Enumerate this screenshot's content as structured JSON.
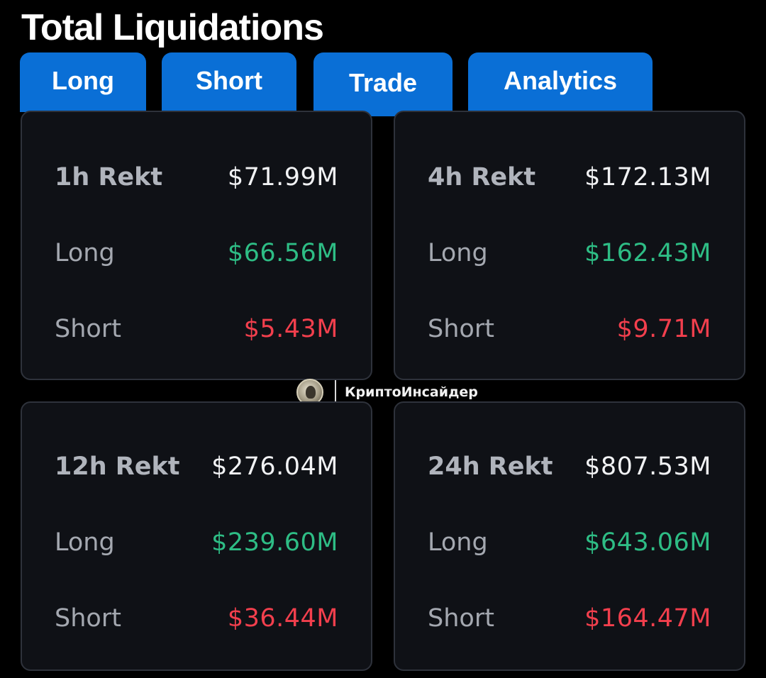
{
  "page": {
    "title": "Total Liquidations"
  },
  "tabs": [
    {
      "label": "Long",
      "active": false
    },
    {
      "label": "Short",
      "active": false
    },
    {
      "label": "Trade",
      "active": true
    },
    {
      "label": "Analytics",
      "active": false
    }
  ],
  "cards": [
    {
      "period_label": "1h Rekt",
      "total": "$71.99M",
      "long_label": "Long",
      "long_value": "$66.56M",
      "short_label": "Short",
      "short_value": "$5.43M"
    },
    {
      "period_label": "4h Rekt",
      "total": "$172.13M",
      "long_label": "Long",
      "long_value": "$162.43M",
      "short_label": "Short",
      "short_value": "$9.71M"
    },
    {
      "period_label": "12h Rekt",
      "total": "$276.04M",
      "long_label": "Long",
      "long_value": "$239.60M",
      "short_label": "Short",
      "short_value": "$36.44M"
    },
    {
      "period_label": "24h Rekt",
      "total": "$807.53M",
      "long_label": "Long",
      "long_value": "$643.06M",
      "short_label": "Short",
      "short_value": "$164.47M"
    }
  ],
  "watermark": {
    "text": "КриптоИнсайдер"
  },
  "colors": {
    "background": "#000000",
    "tab_blue": "#0a6fd6",
    "card_bg": "#0f1116",
    "card_border": "#2e323b",
    "long_green": "#2ebd85",
    "short_red": "#f23f4d",
    "label_gray": "#a4a8b0"
  }
}
